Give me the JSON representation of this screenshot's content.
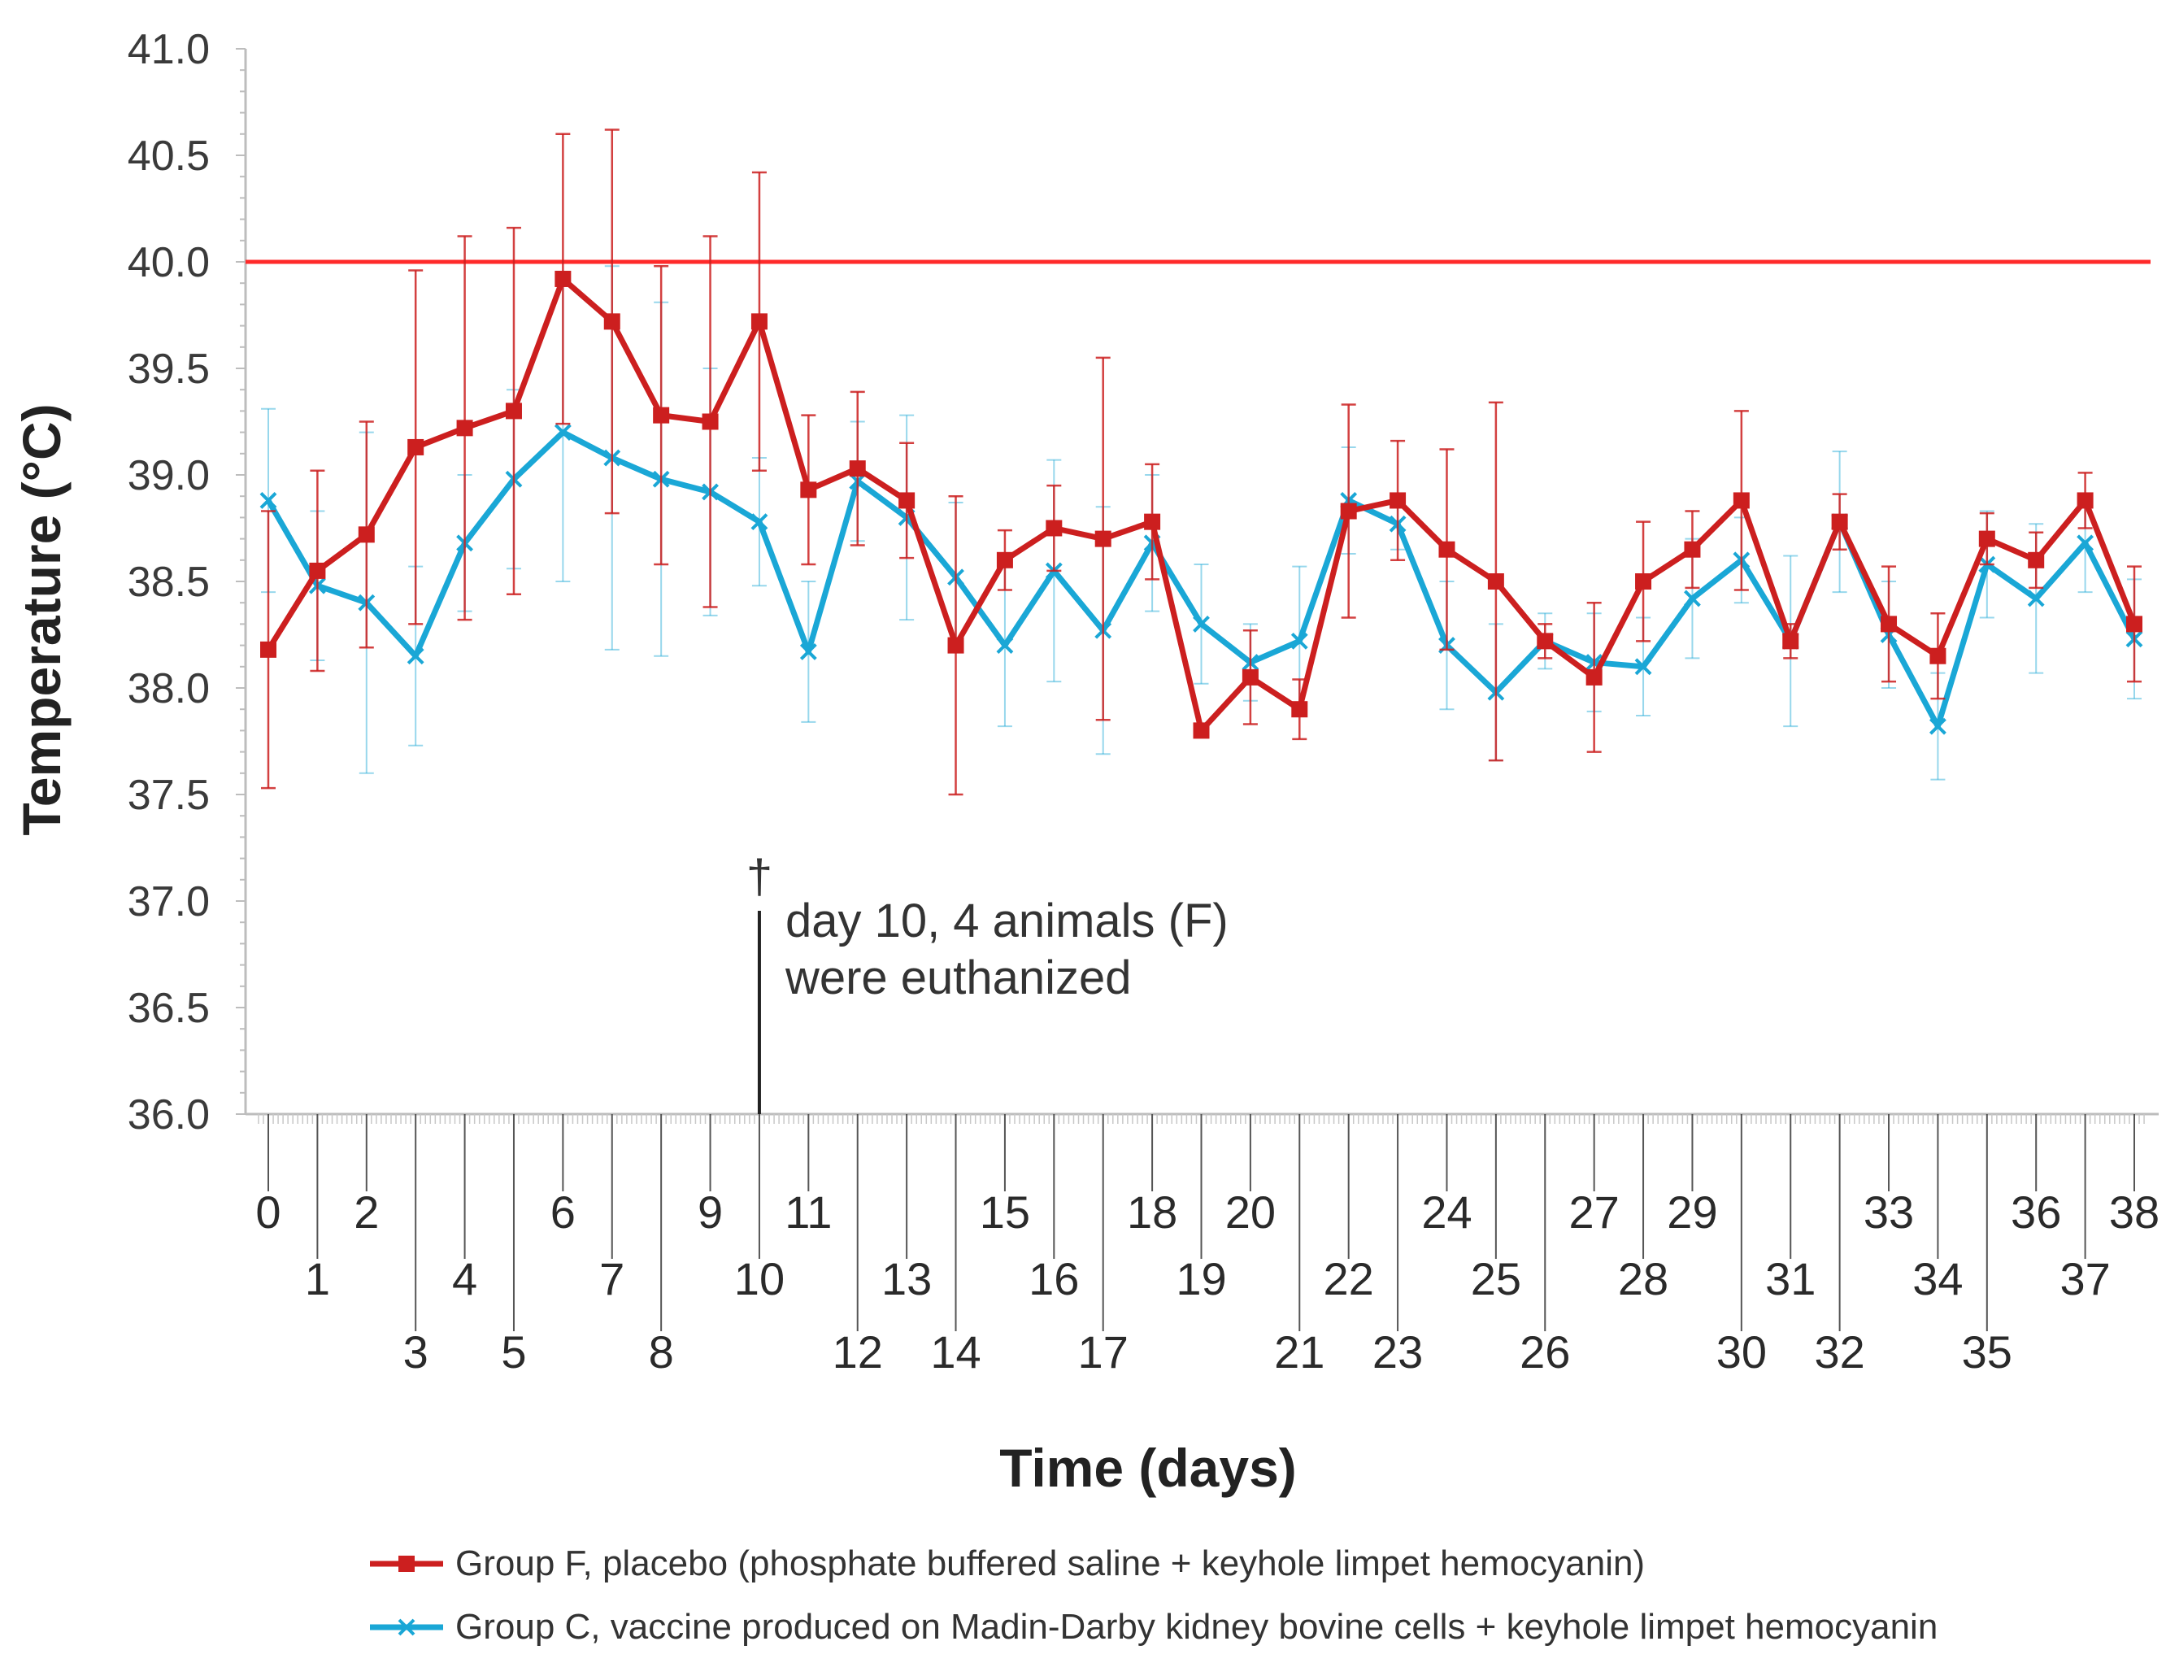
{
  "chart_data": {
    "type": "line",
    "xlabel": "Time (days)",
    "ylabel": "Temperature (°C)",
    "ylim": [
      36.0,
      41.0
    ],
    "xlim": [
      0,
      38
    ],
    "yticks": [
      "36.0",
      "36.5",
      "37.0",
      "37.5",
      "38.0",
      "38.5",
      "39.0",
      "39.5",
      "40.0",
      "40.5",
      "41.0"
    ],
    "x": [
      0,
      1,
      2,
      3,
      4,
      5,
      6,
      7,
      8,
      9,
      10,
      11,
      12,
      13,
      14,
      15,
      16,
      17,
      18,
      19,
      20,
      21,
      22,
      23,
      24,
      25,
      26,
      27,
      28,
      29,
      30,
      31,
      32,
      33,
      34,
      35,
      36,
      37,
      38
    ],
    "xtick_labels": [
      "0",
      "1",
      "2",
      "3",
      "4",
      "5",
      "6",
      "7",
      "8",
      "9",
      "10",
      "11",
      "12",
      "13",
      "14",
      "15",
      "16",
      "17",
      "18",
      "19",
      "20",
      "21",
      "22",
      "23",
      "24",
      "25",
      "26",
      "27",
      "28",
      "29",
      "30",
      "31",
      "32",
      "33",
      "34",
      "35",
      "36",
      "37",
      "38"
    ],
    "threshold": {
      "value": 40.0,
      "color": "#ff2a2a"
    },
    "series": [
      {
        "name": "Group F, placebo (phosphate buffered saline + keyhole limpet hemocyanin)",
        "color": "#cc1f1f",
        "marker": "square",
        "values": [
          38.18,
          38.55,
          38.72,
          39.13,
          39.22,
          39.3,
          39.92,
          39.72,
          39.28,
          39.25,
          39.72,
          38.93,
          39.03,
          38.88,
          38.2,
          38.6,
          38.75,
          38.7,
          38.78,
          37.8,
          38.05,
          37.9,
          38.83,
          38.88,
          38.65,
          38.5,
          38.22,
          38.05,
          38.5,
          38.65,
          38.88,
          38.22,
          38.78,
          38.3,
          38.15,
          38.7,
          38.6,
          38.88,
          38.3
        ],
        "err": [
          0.65,
          0.47,
          0.53,
          0.83,
          0.9,
          0.86,
          0.68,
          0.9,
          0.7,
          0.87,
          0.7,
          0.35,
          0.36,
          0.27,
          0.7,
          0.14,
          0.2,
          0.85,
          0.27,
          0.03,
          0.22,
          0.14,
          0.5,
          0.28,
          0.47,
          0.84,
          0.08,
          0.35,
          0.28,
          0.18,
          0.42,
          0.08,
          0.13,
          0.27,
          0.2,
          0.12,
          0.13,
          0.13,
          0.27
        ]
      },
      {
        "name": "Group C, vaccine produced on Madin-Darby kidney bovine cells + keyhole limpet hemocyanin",
        "color": "#1aa7d6",
        "marker": "x",
        "values": [
          38.88,
          38.48,
          38.4,
          38.15,
          38.68,
          38.98,
          39.2,
          39.08,
          38.98,
          38.92,
          38.78,
          38.17,
          38.97,
          38.8,
          38.52,
          38.2,
          38.55,
          38.27,
          38.68,
          38.3,
          38.12,
          38.22,
          38.88,
          38.77,
          38.2,
          37.98,
          38.22,
          38.12,
          38.1,
          38.42,
          38.6,
          38.22,
          38.78,
          38.25,
          37.82,
          38.58,
          38.42,
          38.68,
          38.23
        ],
        "err": [
          0.43,
          0.35,
          0.8,
          0.42,
          0.32,
          0.42,
          0.7,
          0.9,
          0.83,
          0.58,
          0.3,
          0.33,
          0.28,
          0.48,
          0.35,
          0.38,
          0.52,
          0.58,
          0.32,
          0.28,
          0.18,
          0.35,
          0.25,
          0.12,
          0.3,
          0.32,
          0.13,
          0.23,
          0.23,
          0.28,
          0.2,
          0.4,
          0.33,
          0.25,
          0.25,
          0.25,
          0.35,
          0.23,
          0.28
        ]
      }
    ],
    "annotation": {
      "symbol": "†",
      "day": 10,
      "line1": "day 10, 4 animals (F)",
      "line2": "were euthanized"
    }
  }
}
